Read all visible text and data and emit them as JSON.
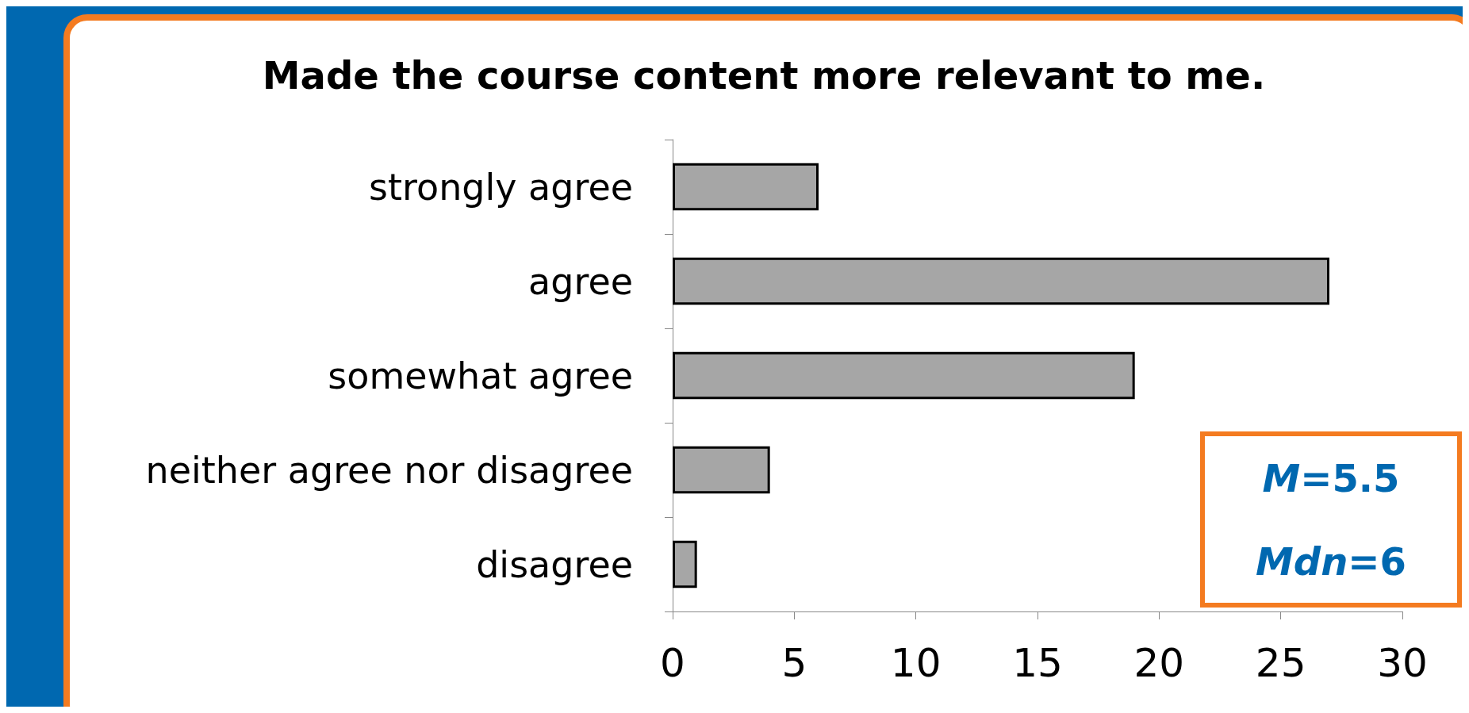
{
  "chart_data": {
    "type": "bar",
    "orientation": "horizontal",
    "title": "Made the course content more relevant to me.",
    "categories": [
      "strongly agree",
      "agree",
      "somewhat agree",
      "neither agree nor disagree",
      "disagree"
    ],
    "values": [
      6,
      27,
      19,
      4,
      1
    ],
    "color": "#a6a6a6",
    "xlim": [
      0,
      30
    ],
    "xticks": [
      0,
      5,
      10,
      15,
      20,
      25,
      30
    ],
    "grid": false,
    "annotations": [
      "M=5.5",
      "Mdn=6"
    ]
  }
}
